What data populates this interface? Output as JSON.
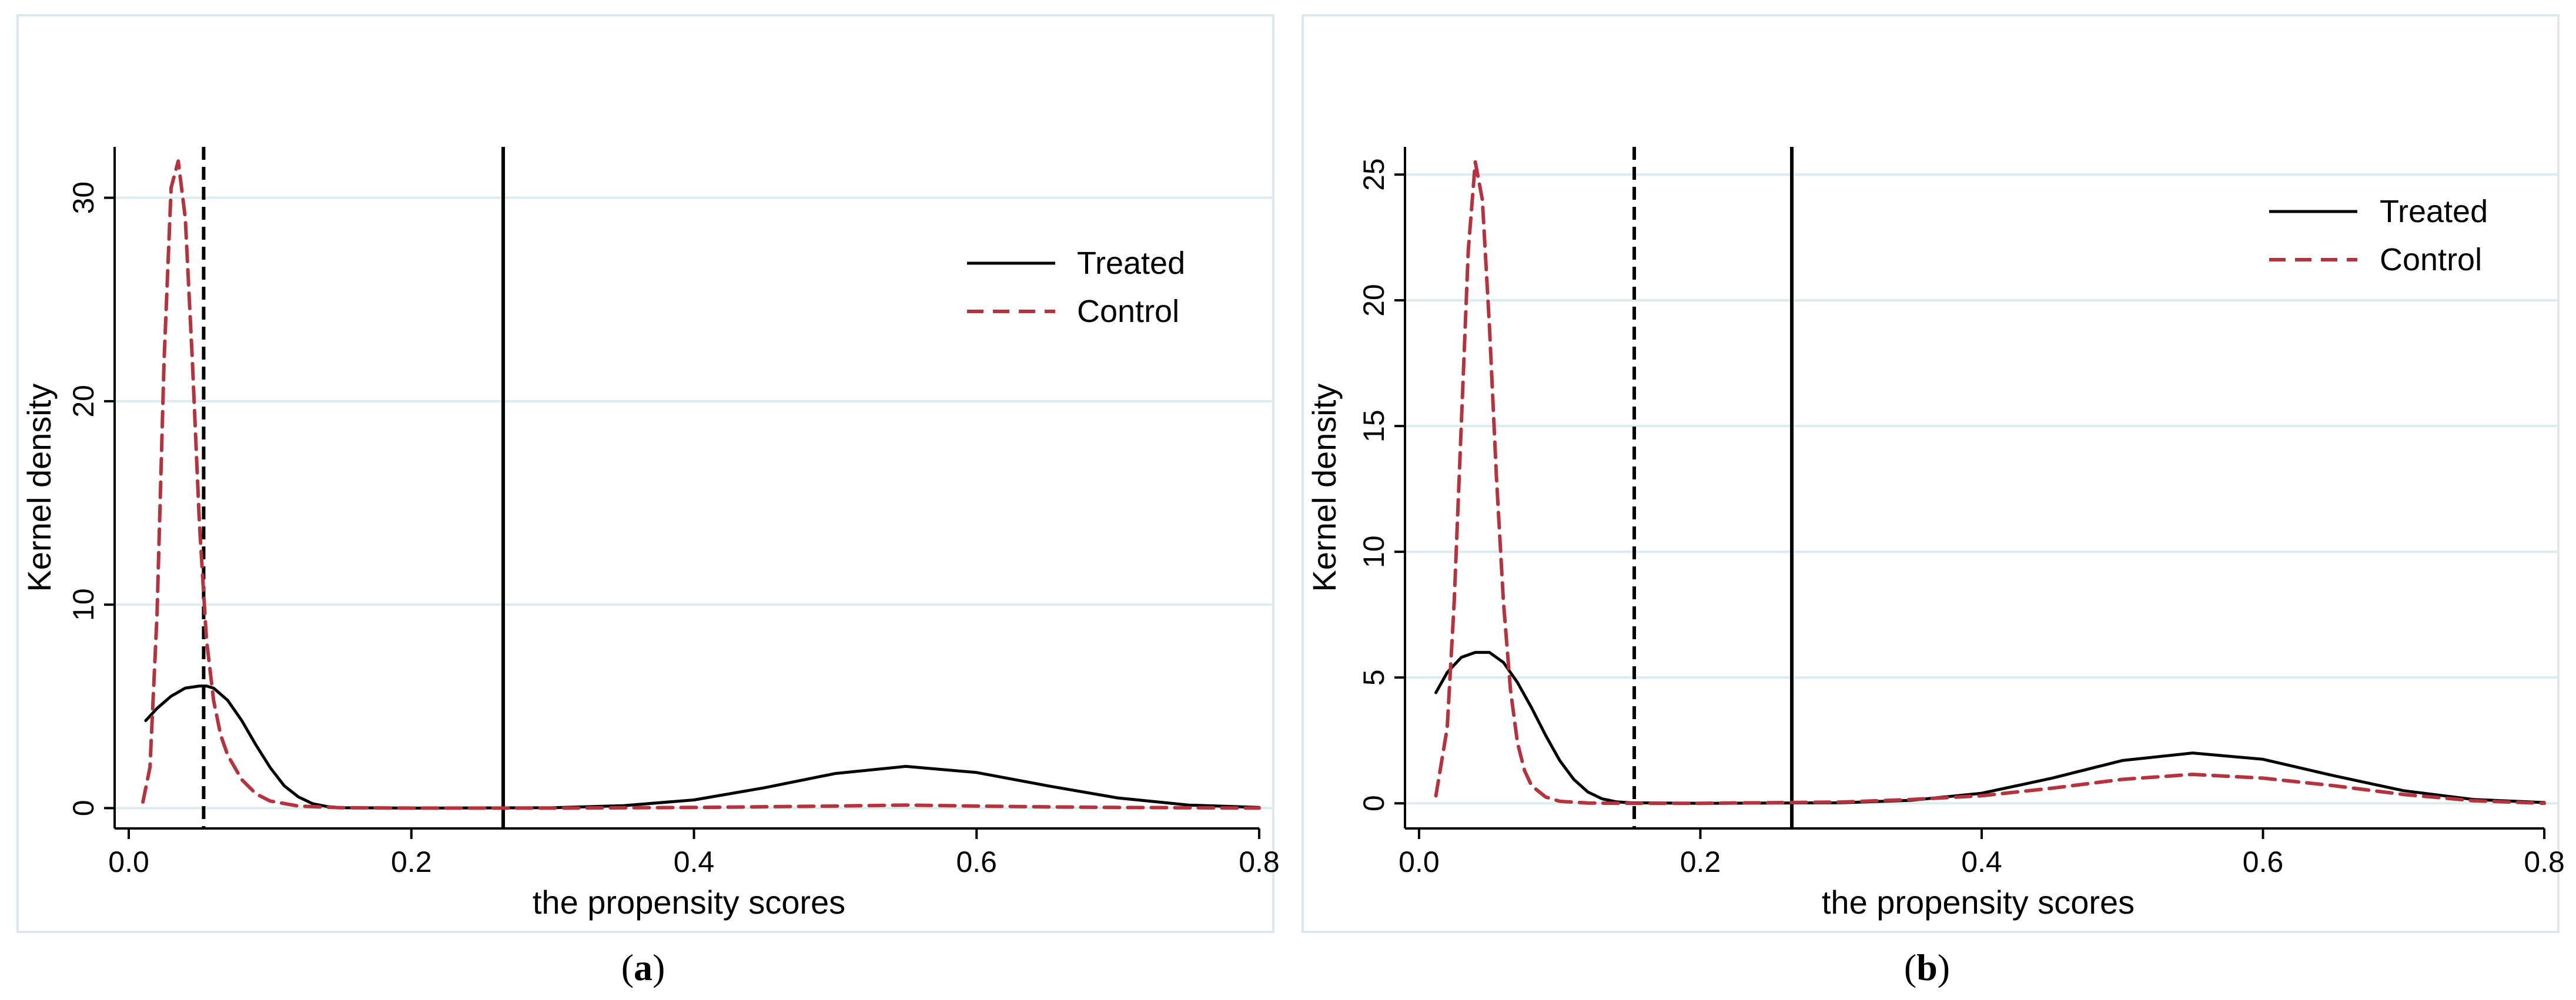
{
  "figure": {
    "panels": [
      {
        "caption": {
          "open": "(",
          "letter": "a",
          "close": ")"
        },
        "legend": [
          "Treated",
          "Control"
        ]
      },
      {
        "caption": {
          "open": "(",
          "letter": "b",
          "close": ")"
        },
        "legend": [
          "Treated",
          "Control"
        ]
      }
    ]
  },
  "colors": {
    "treated": "#000000",
    "control": "#b5333d",
    "grid": "#dcebee",
    "frame": "#dde8ee"
  },
  "chart_data": [
    {
      "type": "line",
      "panel": "a",
      "xlabel": "the propensity scores",
      "ylabel": "Kernel density",
      "xlim": [
        -0.01,
        0.81
      ],
      "ylim": [
        -1,
        32.5
      ],
      "x_ticks": [
        0,
        0.2,
        0.4,
        0.6,
        0.8
      ],
      "x_tick_labels": [
        "0.0",
        "0.2",
        "0.4",
        "0.6",
        "0.8"
      ],
      "y_ticks": [
        0,
        10,
        20,
        30
      ],
      "y_tick_labels": [
        "0",
        "10",
        "20",
        "30"
      ],
      "gridlines": "horizontal",
      "legend_position": "top-right",
      "series": [
        {
          "name": "Treated",
          "style": "solid",
          "x": [
            0.012,
            0.02,
            0.03,
            0.04,
            0.05,
            0.055,
            0.06,
            0.07,
            0.08,
            0.09,
            0.1,
            0.11,
            0.12,
            0.13,
            0.14,
            0.15,
            0.2,
            0.3,
            0.35,
            0.4,
            0.45,
            0.5,
            0.55,
            0.6,
            0.65,
            0.7,
            0.75,
            0.8
          ],
          "y": [
            4.3,
            4.9,
            5.5,
            5.9,
            6.0,
            6.0,
            5.9,
            5.3,
            4.3,
            3.1,
            2.0,
            1.1,
            0.55,
            0.22,
            0.08,
            0.02,
            0.0,
            0.02,
            0.12,
            0.4,
            1.0,
            1.7,
            2.05,
            1.75,
            1.1,
            0.5,
            0.15,
            0.03
          ]
        },
        {
          "name": "Control",
          "style": "dashed",
          "x": [
            0.01,
            0.015,
            0.02,
            0.025,
            0.03,
            0.035,
            0.04,
            0.045,
            0.05,
            0.055,
            0.06,
            0.065,
            0.07,
            0.08,
            0.09,
            0.1,
            0.12,
            0.15,
            0.2,
            0.3,
            0.4,
            0.5,
            0.55,
            0.6,
            0.65,
            0.7,
            0.8
          ],
          "y": [
            0.3,
            2.0,
            9.5,
            22.0,
            30.5,
            31.8,
            29.0,
            22.0,
            14.0,
            8.3,
            5.3,
            3.6,
            2.6,
            1.4,
            0.7,
            0.35,
            0.1,
            0.02,
            0.0,
            0.0,
            0.03,
            0.1,
            0.15,
            0.1,
            0.06,
            0.03,
            0.0
          ]
        }
      ],
      "reference_lines": [
        {
          "x": 0.053,
          "style": "dashed"
        },
        {
          "x": 0.265,
          "style": "solid"
        }
      ]
    },
    {
      "type": "line",
      "panel": "b",
      "xlabel": "the propensity scores",
      "ylabel": "Kernel density",
      "xlim": [
        -0.01,
        0.81
      ],
      "ylim": [
        -1,
        26.1
      ],
      "x_ticks": [
        0,
        0.2,
        0.4,
        0.6,
        0.8
      ],
      "x_tick_labels": [
        "0.0",
        "0.2",
        "0.4",
        "0.6",
        "0.8"
      ],
      "y_ticks": [
        0,
        5,
        10,
        15,
        20,
        25
      ],
      "y_tick_labels": [
        "0",
        "5",
        "10",
        "15",
        "20",
        "25"
      ],
      "gridlines": "horizontal",
      "legend_position": "top-right",
      "series": [
        {
          "name": "Treated",
          "style": "solid",
          "x": [
            0.012,
            0.02,
            0.03,
            0.04,
            0.05,
            0.06,
            0.07,
            0.08,
            0.09,
            0.1,
            0.11,
            0.12,
            0.13,
            0.14,
            0.15,
            0.2,
            0.3,
            0.35,
            0.4,
            0.45,
            0.5,
            0.55,
            0.6,
            0.65,
            0.7,
            0.75,
            0.8
          ],
          "y": [
            4.4,
            5.2,
            5.8,
            6.0,
            6.0,
            5.6,
            4.8,
            3.8,
            2.7,
            1.7,
            0.95,
            0.45,
            0.18,
            0.06,
            0.02,
            0.0,
            0.02,
            0.12,
            0.4,
            1.0,
            1.7,
            2.0,
            1.75,
            1.1,
            0.5,
            0.15,
            0.03
          ]
        },
        {
          "name": "Control",
          "style": "dashed",
          "x": [
            0.012,
            0.02,
            0.025,
            0.03,
            0.035,
            0.04,
            0.045,
            0.05,
            0.055,
            0.06,
            0.065,
            0.07,
            0.075,
            0.08,
            0.09,
            0.1,
            0.12,
            0.15,
            0.2,
            0.3,
            0.35,
            0.4,
            0.45,
            0.5,
            0.55,
            0.6,
            0.65,
            0.7,
            0.75,
            0.8
          ],
          "y": [
            0.3,
            3.0,
            8.0,
            15.0,
            22.0,
            25.5,
            24.0,
            19.0,
            13.0,
            8.0,
            4.5,
            2.4,
            1.3,
            0.7,
            0.25,
            0.08,
            0.01,
            0.0,
            0.0,
            0.05,
            0.15,
            0.3,
            0.6,
            0.95,
            1.15,
            1.0,
            0.7,
            0.35,
            0.1,
            0.0
          ]
        }
      ],
      "reference_lines": [
        {
          "x": 0.153,
          "style": "dashed"
        },
        {
          "x": 0.265,
          "style": "solid"
        }
      ]
    }
  ]
}
